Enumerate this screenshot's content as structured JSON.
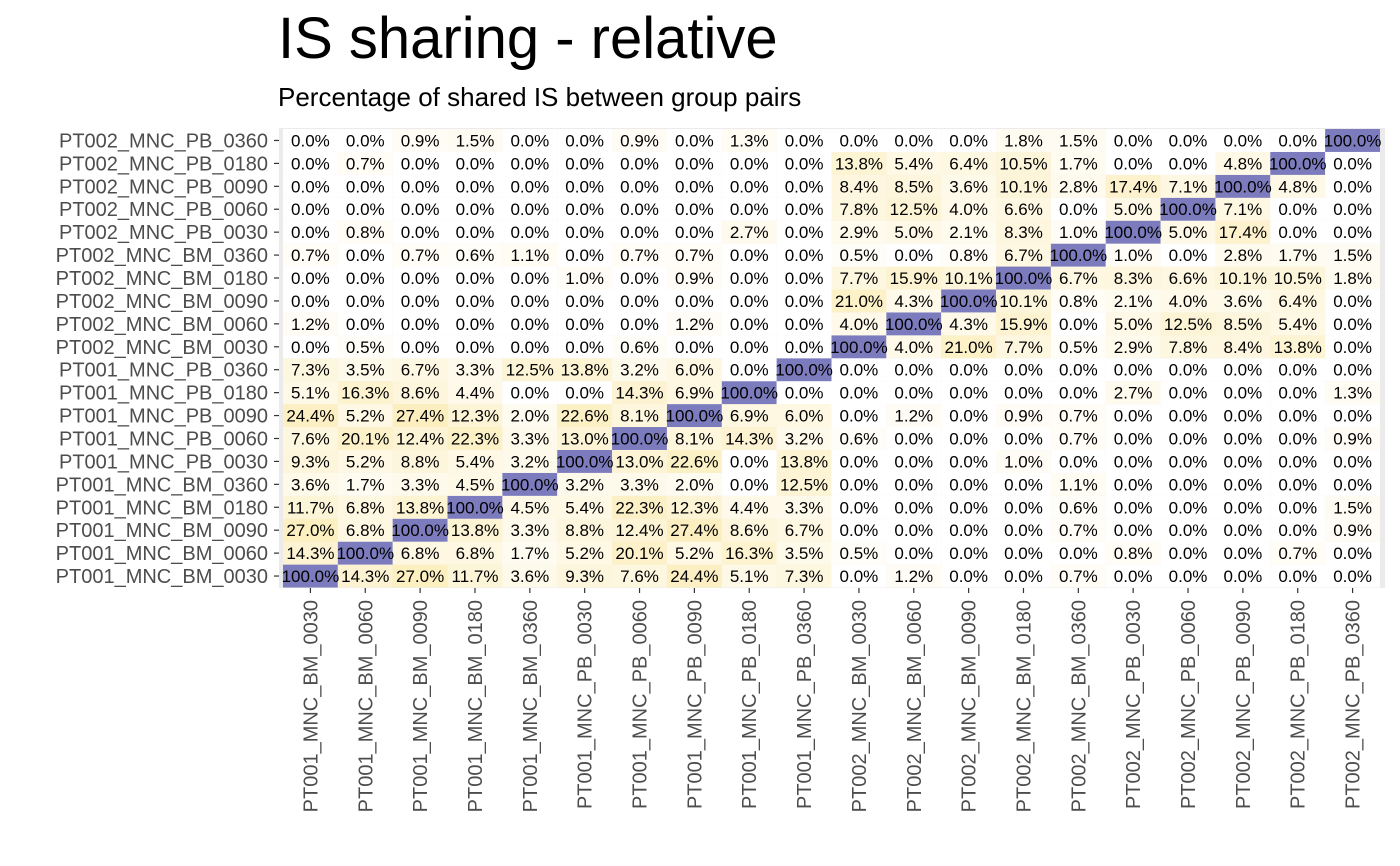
{
  "chart_data": {
    "type": "heatmap",
    "title": "IS sharing - relative",
    "subtitle": "Percentage of shared IS between group pairs",
    "xlabel": "",
    "ylabel": "",
    "x_categories": [
      "PT001_MNC_BM_0030",
      "PT001_MNC_BM_0060",
      "PT001_MNC_BM_0090",
      "PT001_MNC_BM_0180",
      "PT001_MNC_BM_0360",
      "PT001_MNC_PB_0030",
      "PT001_MNC_PB_0060",
      "PT001_MNC_PB_0090",
      "PT001_MNC_PB_0180",
      "PT001_MNC_PB_0360",
      "PT002_MNC_BM_0030",
      "PT002_MNC_BM_0060",
      "PT002_MNC_BM_0090",
      "PT002_MNC_BM_0180",
      "PT002_MNC_BM_0360",
      "PT002_MNC_PB_0030",
      "PT002_MNC_PB_0060",
      "PT002_MNC_PB_0090",
      "PT002_MNC_PB_0180",
      "PT002_MNC_PB_0360"
    ],
    "y_categories": [
      "PT001_MNC_BM_0030",
      "PT001_MNC_BM_0060",
      "PT001_MNC_BM_0090",
      "PT001_MNC_BM_0180",
      "PT001_MNC_BM_0360",
      "PT001_MNC_PB_0030",
      "PT001_MNC_PB_0060",
      "PT001_MNC_PB_0090",
      "PT001_MNC_PB_0180",
      "PT001_MNC_PB_0360",
      "PT002_MNC_BM_0030",
      "PT002_MNC_BM_0060",
      "PT002_MNC_BM_0090",
      "PT002_MNC_BM_0180",
      "PT002_MNC_BM_0360",
      "PT002_MNC_PB_0030",
      "PT002_MNC_PB_0060",
      "PT002_MNC_PB_0090",
      "PT002_MNC_PB_0180",
      "PT002_MNC_PB_0360"
    ],
    "values": [
      [
        100.0,
        14.3,
        27.0,
        11.7,
        3.6,
        9.3,
        7.6,
        24.4,
        5.1,
        7.3,
        0.0,
        1.2,
        0.0,
        0.0,
        0.7,
        0.0,
        0.0,
        0.0,
        0.0,
        0.0
      ],
      [
        14.3,
        100.0,
        6.8,
        6.8,
        1.7,
        5.2,
        20.1,
        5.2,
        16.3,
        3.5,
        0.5,
        0.0,
        0.0,
        0.0,
        0.0,
        0.8,
        0.0,
        0.0,
        0.7,
        0.0
      ],
      [
        27.0,
        6.8,
        100.0,
        13.8,
        3.3,
        8.8,
        12.4,
        27.4,
        8.6,
        6.7,
        0.0,
        0.0,
        0.0,
        0.0,
        0.7,
        0.0,
        0.0,
        0.0,
        0.0,
        0.9
      ],
      [
        11.7,
        6.8,
        13.8,
        100.0,
        4.5,
        5.4,
        22.3,
        12.3,
        4.4,
        3.3,
        0.0,
        0.0,
        0.0,
        0.0,
        0.6,
        0.0,
        0.0,
        0.0,
        0.0,
        1.5
      ],
      [
        3.6,
        1.7,
        3.3,
        4.5,
        100.0,
        3.2,
        3.3,
        2.0,
        0.0,
        12.5,
        0.0,
        0.0,
        0.0,
        0.0,
        1.1,
        0.0,
        0.0,
        0.0,
        0.0,
        0.0
      ],
      [
        9.3,
        5.2,
        8.8,
        5.4,
        3.2,
        100.0,
        13.0,
        22.6,
        0.0,
        13.8,
        0.0,
        0.0,
        0.0,
        1.0,
        0.0,
        0.0,
        0.0,
        0.0,
        0.0,
        0.0
      ],
      [
        7.6,
        20.1,
        12.4,
        22.3,
        3.3,
        13.0,
        100.0,
        8.1,
        14.3,
        3.2,
        0.6,
        0.0,
        0.0,
        0.0,
        0.7,
        0.0,
        0.0,
        0.0,
        0.0,
        0.9
      ],
      [
        24.4,
        5.2,
        27.4,
        12.3,
        2.0,
        22.6,
        8.1,
        100.0,
        6.9,
        6.0,
        0.0,
        1.2,
        0.0,
        0.9,
        0.7,
        0.0,
        0.0,
        0.0,
        0.0,
        0.0
      ],
      [
        5.1,
        16.3,
        8.6,
        4.4,
        0.0,
        0.0,
        14.3,
        6.9,
        100.0,
        0.0,
        0.0,
        0.0,
        0.0,
        0.0,
        0.0,
        2.7,
        0.0,
        0.0,
        0.0,
        1.3
      ],
      [
        7.3,
        3.5,
        6.7,
        3.3,
        12.5,
        13.8,
        3.2,
        6.0,
        0.0,
        100.0,
        0.0,
        0.0,
        0.0,
        0.0,
        0.0,
        0.0,
        0.0,
        0.0,
        0.0,
        0.0
      ],
      [
        0.0,
        0.5,
        0.0,
        0.0,
        0.0,
        0.0,
        0.6,
        0.0,
        0.0,
        0.0,
        100.0,
        4.0,
        21.0,
        7.7,
        0.5,
        2.9,
        7.8,
        8.4,
        13.8,
        0.0
      ],
      [
        1.2,
        0.0,
        0.0,
        0.0,
        0.0,
        0.0,
        0.0,
        1.2,
        0.0,
        0.0,
        4.0,
        100.0,
        4.3,
        15.9,
        0.0,
        5.0,
        12.5,
        8.5,
        5.4,
        0.0
      ],
      [
        0.0,
        0.0,
        0.0,
        0.0,
        0.0,
        0.0,
        0.0,
        0.0,
        0.0,
        0.0,
        21.0,
        4.3,
        100.0,
        10.1,
        0.8,
        2.1,
        4.0,
        3.6,
        6.4,
        0.0
      ],
      [
        0.0,
        0.0,
        0.0,
        0.0,
        0.0,
        1.0,
        0.0,
        0.9,
        0.0,
        0.0,
        7.7,
        15.9,
        10.1,
        100.0,
        6.7,
        8.3,
        6.6,
        10.1,
        10.5,
        1.8
      ],
      [
        0.7,
        0.0,
        0.7,
        0.6,
        1.1,
        0.0,
        0.7,
        0.7,
        0.0,
        0.0,
        0.5,
        0.0,
        0.8,
        6.7,
        100.0,
        1.0,
        0.0,
        2.8,
        1.7,
        1.5
      ],
      [
        0.0,
        0.8,
        0.0,
        0.0,
        0.0,
        0.0,
        0.0,
        0.0,
        2.7,
        0.0,
        2.9,
        5.0,
        2.1,
        8.3,
        1.0,
        100.0,
        5.0,
        17.4,
        0.0,
        0.0
      ],
      [
        0.0,
        0.0,
        0.0,
        0.0,
        0.0,
        0.0,
        0.0,
        0.0,
        0.0,
        0.0,
        7.8,
        12.5,
        4.0,
        6.6,
        0.0,
        5.0,
        100.0,
        7.1,
        0.0,
        0.0
      ],
      [
        0.0,
        0.0,
        0.0,
        0.0,
        0.0,
        0.0,
        0.0,
        0.0,
        0.0,
        0.0,
        8.4,
        8.5,
        3.6,
        10.1,
        2.8,
        17.4,
        7.1,
        100.0,
        4.8,
        0.0
      ],
      [
        0.0,
        0.7,
        0.0,
        0.0,
        0.0,
        0.0,
        0.0,
        0.0,
        0.0,
        0.0,
        13.8,
        5.4,
        6.4,
        10.5,
        1.7,
        0.0,
        0.0,
        4.8,
        100.0,
        0.0
      ],
      [
        0.0,
        0.0,
        0.9,
        1.5,
        0.0,
        0.0,
        0.9,
        0.0,
        1.3,
        0.0,
        0.0,
        0.0,
        0.0,
        1.8,
        1.5,
        0.0,
        0.0,
        0.0,
        0.0,
        100.0
      ]
    ],
    "value_format": "percent, 1 decimal",
    "colors": {
      "low": "#ffffff",
      "mid": "#fbe8a6",
      "high": "#7b7bbd",
      "panel_background": "#ebebeb",
      "tick_text": "#4d4d4d",
      "cell_text": "#000000"
    },
    "legend": "none",
    "grid": false
  }
}
